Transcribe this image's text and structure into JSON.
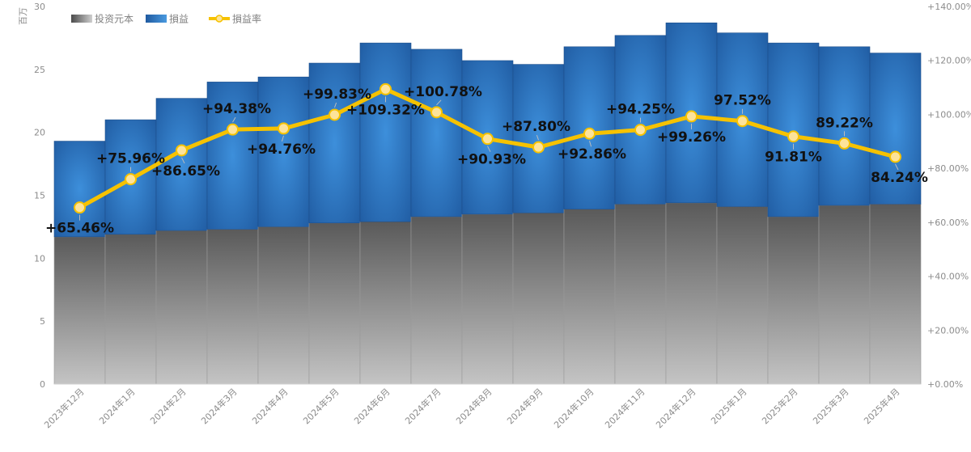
{
  "chart_data": {
    "type": "bar",
    "categories": [
      "2023年12月",
      "2024年1月",
      "2024年2月",
      "2024年3月",
      "2024年4月",
      "2024年5月",
      "2024年6月",
      "2024年7月",
      "2024年8月",
      "2024年9月",
      "2024年10月",
      "2024年11月",
      "2024年12月",
      "2025年1月",
      "2025年2月",
      "2025年3月",
      "2025年4月"
    ],
    "series": [
      {
        "name": "投资元本",
        "kind": "stacked-bar",
        "axis": "left",
        "values": [
          11.7,
          11.9,
          12.2,
          12.3,
          12.5,
          12.8,
          12.9,
          13.3,
          13.5,
          13.6,
          13.9,
          14.3,
          14.4,
          14.1,
          13.3,
          14.2,
          14.3
        ],
        "color": "#6e6e6e"
      },
      {
        "name": "損益",
        "kind": "stacked-bar",
        "axis": "left",
        "values": [
          7.6,
          9.1,
          10.5,
          11.7,
          11.9,
          12.7,
          14.2,
          13.3,
          12.2,
          11.8,
          12.9,
          13.4,
          14.3,
          13.8,
          13.8,
          12.6,
          12.0
        ],
        "color": "#2f78c4"
      },
      {
        "name": "損益率",
        "kind": "line",
        "axis": "right",
        "values": [
          65.46,
          75.96,
          86.65,
          94.38,
          94.76,
          99.83,
          109.32,
          100.78,
          90.93,
          87.8,
          92.86,
          94.25,
          99.26,
          97.52,
          91.81,
          89.22,
          84.24
        ],
        "labels": [
          "+65.46%",
          "+75.96%",
          "+86.65%",
          "+94.38%",
          "+94.76%",
          "+99.83%",
          "+109.32%",
          "+100.78%",
          "+90.93%",
          "+87.80%",
          "+92.86%",
          "+94.25%",
          "+99.26%",
          "97.52%",
          "91.81%",
          "89.22%",
          "84.24%"
        ],
        "color": "#f6c200"
      }
    ],
    "y_left": {
      "min": 0,
      "max": 30,
      "step": 5,
      "ticks": [
        "0",
        "5",
        "10",
        "15",
        "20",
        "25",
        "30"
      ],
      "unit": "百万"
    },
    "y_right": {
      "min": 0,
      "max": 140,
      "step": 20,
      "ticks": [
        "+0.00%",
        "+20.00%",
        "+40.00%",
        "+60.00%",
        "+80.00%",
        "+100.00%",
        "+120.00%",
        "+140.00%"
      ]
    },
    "legend": {
      "position": "top-left",
      "items": [
        "投资元本",
        "損益",
        "損益率"
      ]
    },
    "grid": false,
    "colors": {
      "capital": "#6e6e6e",
      "profit": "#2f78c4",
      "rate_line": "#f6c200",
      "marker": "#fde39a"
    }
  }
}
